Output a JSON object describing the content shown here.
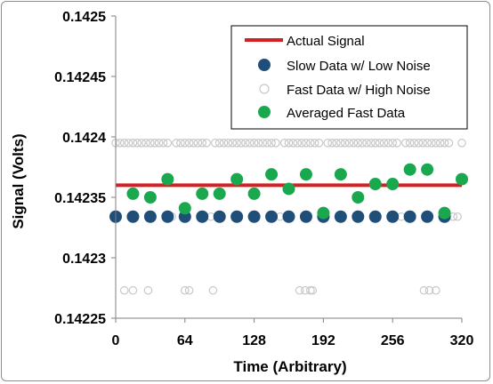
{
  "chart_data": {
    "type": "scatter",
    "xlabel": "Time (Arbitrary)",
    "ylabel": "Signal (Volts)",
    "xlim": [
      0,
      320
    ],
    "ylim": [
      0.14225,
      0.1425
    ],
    "x_ticks": [
      0,
      64,
      128,
      192,
      256,
      320
    ],
    "y_ticks": [
      0.14225,
      0.1423,
      0.14235,
      0.1424,
      0.14245,
      0.1425
    ],
    "y_tick_labels": [
      "0.14225",
      "0.1423",
      "0.14235",
      "0.1424",
      "0.14245",
      "0.1425"
    ],
    "grid": false,
    "legend_position": "top-right",
    "series": [
      {
        "name": "Actual Signal",
        "kind": "line",
        "color": "#d42020",
        "x": [
          0,
          320
        ],
        "y": [
          0.14236,
          0.14236
        ]
      },
      {
        "name": "Slow Data w/ Low Noise",
        "kind": "marker",
        "color": "#1f4e79",
        "x": [
          0,
          16,
          32,
          48,
          64,
          80,
          96,
          112,
          128,
          144,
          160,
          176,
          192,
          208,
          224,
          240,
          256,
          272,
          288,
          304
        ],
        "y": [
          0.142334,
          0.142334,
          0.142334,
          0.142334,
          0.142334,
          0.142334,
          0.142334,
          0.142334,
          0.142334,
          0.142334,
          0.142334,
          0.142334,
          0.142334,
          0.142334,
          0.142334,
          0.142334,
          0.142334,
          0.142334,
          0.142334,
          0.142334
        ]
      },
      {
        "name": "Fast Data w/ High Noise",
        "kind": "hollow-marker",
        "color": "#c8c8c8",
        "x": [
          0,
          4,
          8,
          12,
          16,
          20,
          24,
          28,
          32,
          36,
          40,
          44,
          48,
          52,
          56,
          60,
          64,
          68,
          72,
          76,
          80,
          84,
          88,
          92,
          96,
          100,
          104,
          108,
          112,
          116,
          120,
          124,
          128,
          132,
          136,
          140,
          144,
          148,
          152,
          156,
          160,
          164,
          168,
          172,
          176,
          180,
          184,
          188,
          192,
          196,
          200,
          204,
          208,
          212,
          216,
          220,
          224,
          228,
          232,
          236,
          240,
          244,
          248,
          252,
          256,
          260,
          264,
          268,
          272,
          276,
          280,
          284,
          288,
          292,
          296,
          300,
          304,
          308,
          312,
          316,
          320,
          8,
          16,
          30,
          64,
          68,
          90,
          170,
          175,
          180,
          182,
          285,
          290,
          296
        ],
        "y": [
          0.142395,
          0.142395,
          0.142395,
          0.142395,
          0.142395,
          0.142395,
          0.142395,
          0.142395,
          0.142395,
          0.142395,
          0.142395,
          0.142395,
          0.142395,
          0.142334,
          0.142395,
          0.142395,
          0.142395,
          0.142395,
          0.142395,
          0.142395,
          0.142395,
          0.142395,
          0.142334,
          0.142395,
          0.142395,
          0.142395,
          0.142395,
          0.142395,
          0.142395,
          0.142395,
          0.142395,
          0.142395,
          0.142395,
          0.142395,
          0.142395,
          0.142395,
          0.142395,
          0.142395,
          0.142334,
          0.142395,
          0.142395,
          0.142395,
          0.142395,
          0.142395,
          0.142395,
          0.142395,
          0.142395,
          0.142395,
          0.142334,
          0.142395,
          0.142395,
          0.142395,
          0.142395,
          0.142395,
          0.142395,
          0.142395,
          0.142395,
          0.142395,
          0.142395,
          0.142395,
          0.142395,
          0.142395,
          0.142395,
          0.142395,
          0.142395,
          0.142395,
          0.142334,
          0.142395,
          0.142395,
          0.142395,
          0.142395,
          0.142395,
          0.142395,
          0.142395,
          0.142395,
          0.142395,
          0.142395,
          0.142395,
          0.142334,
          0.142334,
          0.142395,
          0.142273,
          0.142273,
          0.142273,
          0.142273,
          0.142273,
          0.142273,
          0.142273,
          0.142273,
          0.142273,
          0.142273,
          0.142273,
          0.142273,
          0.142273
        ]
      },
      {
        "name": "Averaged Fast Data",
        "kind": "marker",
        "color": "#1aa84f",
        "x": [
          16,
          32,
          48,
          64,
          80,
          96,
          112,
          128,
          144,
          160,
          176,
          192,
          208,
          224,
          240,
          256,
          272,
          288,
          304,
          320
        ],
        "y": [
          0.142353,
          0.14235,
          0.142365,
          0.142341,
          0.142353,
          0.142353,
          0.142365,
          0.142353,
          0.142369,
          0.142357,
          0.142369,
          0.142337,
          0.142369,
          0.14235,
          0.142361,
          0.142361,
          0.142373,
          0.142373,
          0.142337,
          0.142365
        ]
      }
    ]
  }
}
